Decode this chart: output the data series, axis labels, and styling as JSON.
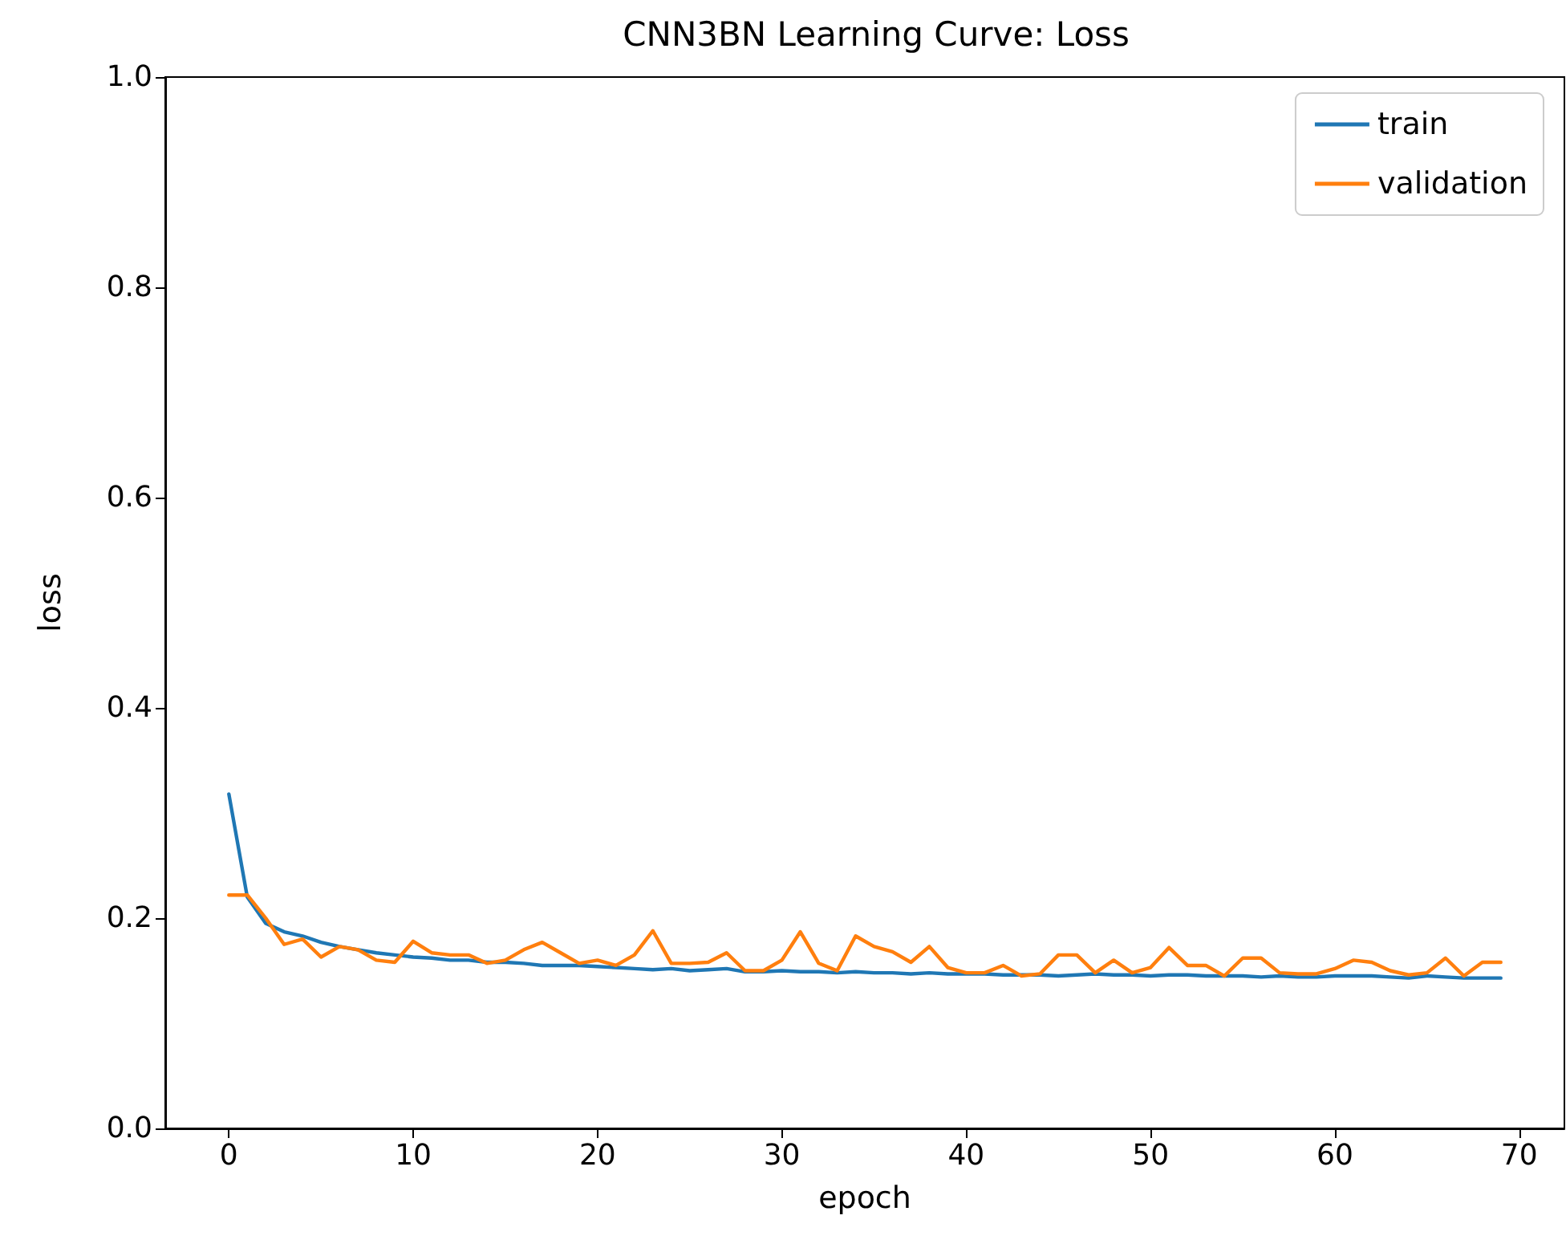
{
  "chart_data": {
    "type": "line",
    "title": "CNN3BN Learning Curve: Loss",
    "xlabel": "epoch",
    "ylabel": "loss",
    "x": [
      0,
      1,
      2,
      3,
      4,
      5,
      6,
      7,
      8,
      9,
      10,
      11,
      12,
      13,
      14,
      15,
      16,
      17,
      18,
      19,
      20,
      21,
      22,
      23,
      24,
      25,
      26,
      27,
      28,
      29,
      30,
      31,
      32,
      33,
      34,
      35,
      36,
      37,
      38,
      39,
      40,
      41,
      42,
      43,
      44,
      45,
      46,
      47,
      48,
      49,
      50,
      51,
      52,
      53,
      54,
      55,
      56,
      57,
      58,
      59,
      60,
      61,
      62,
      63,
      64,
      65,
      66,
      67,
      68,
      69
    ],
    "series": [
      {
        "name": "train",
        "color": "#1f77b4",
        "values": [
          0.318,
          0.22,
          0.195,
          0.187,
          0.183,
          0.177,
          0.173,
          0.17,
          0.167,
          0.165,
          0.163,
          0.162,
          0.16,
          0.16,
          0.158,
          0.158,
          0.157,
          0.155,
          0.155,
          0.155,
          0.154,
          0.153,
          0.152,
          0.151,
          0.152,
          0.15,
          0.151,
          0.152,
          0.149,
          0.149,
          0.15,
          0.149,
          0.149,
          0.148,
          0.149,
          0.148,
          0.148,
          0.147,
          0.148,
          0.147,
          0.147,
          0.147,
          0.146,
          0.146,
          0.146,
          0.145,
          0.146,
          0.147,
          0.146,
          0.146,
          0.145,
          0.146,
          0.146,
          0.145,
          0.145,
          0.145,
          0.144,
          0.145,
          0.144,
          0.144,
          0.145,
          0.145,
          0.145,
          0.144,
          0.143,
          0.145,
          0.144,
          0.143,
          0.143,
          0.143
        ]
      },
      {
        "name": "validation",
        "color": "#ff7f0e",
        "values": [
          0.222,
          0.222,
          0.2,
          0.175,
          0.18,
          0.163,
          0.173,
          0.17,
          0.16,
          0.158,
          0.178,
          0.167,
          0.165,
          0.165,
          0.157,
          0.16,
          0.17,
          0.177,
          0.167,
          0.157,
          0.16,
          0.155,
          0.165,
          0.188,
          0.157,
          0.157,
          0.158,
          0.167,
          0.15,
          0.15,
          0.16,
          0.187,
          0.157,
          0.15,
          0.183,
          0.173,
          0.168,
          0.158,
          0.173,
          0.153,
          0.148,
          0.148,
          0.155,
          0.145,
          0.147,
          0.165,
          0.165,
          0.148,
          0.16,
          0.148,
          0.153,
          0.172,
          0.155,
          0.155,
          0.145,
          0.162,
          0.162,
          0.148,
          0.147,
          0.147,
          0.152,
          0.16,
          0.158,
          0.15,
          0.146,
          0.148,
          0.162,
          0.145,
          0.158,
          0.158
        ]
      }
    ],
    "xlim": [
      -3.45,
      72.45
    ],
    "xticks": [
      0,
      10,
      20,
      30,
      40,
      50,
      60,
      70
    ],
    "ylim": [
      0,
      1
    ],
    "yticks": [
      {
        "value": 0,
        "label": "0.0"
      },
      {
        "value": 0.2,
        "label": "0.2"
      },
      {
        "value": 0.4,
        "label": "0.4"
      },
      {
        "value": 0.6,
        "label": "0.6"
      },
      {
        "value": 0.8,
        "label": "0.8"
      },
      {
        "value": 1,
        "label": "1.0"
      }
    ],
    "legend": "top right",
    "marker": "none",
    "line_style": "solid"
  }
}
